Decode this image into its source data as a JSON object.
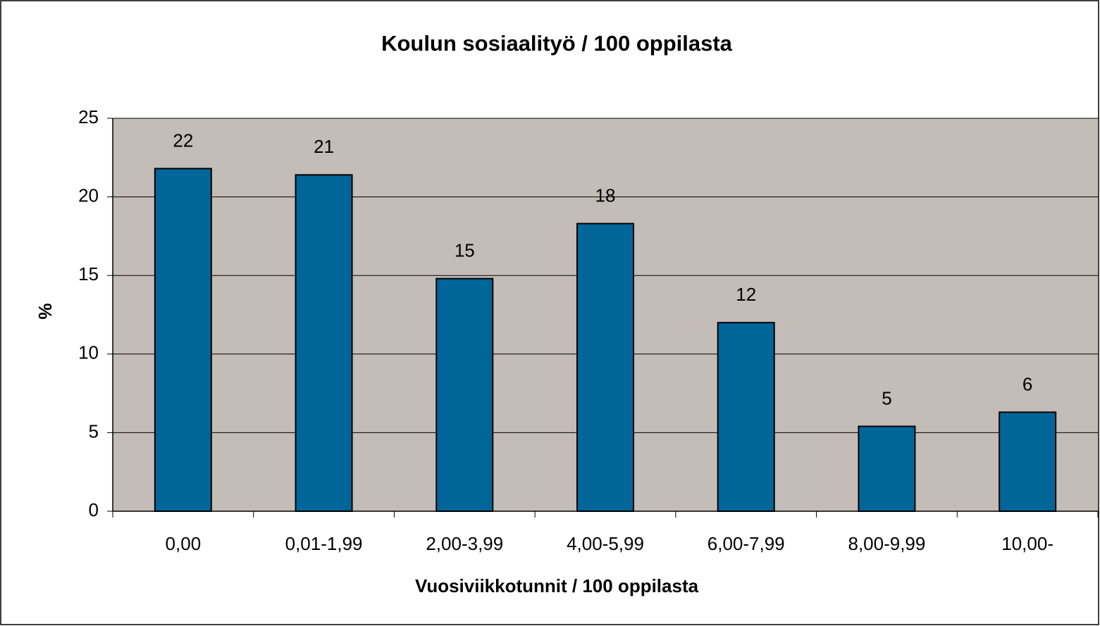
{
  "chart_data": {
    "type": "bar",
    "title": "Koulun sosiaalityö / 100 oppilasta",
    "x_label": "Vuosiviikkotunnit / 100 oppilasta",
    "y_label": "%",
    "categories": [
      "0,00",
      "0,01-1,99",
      "2,00-3,99",
      "4,00-5,99",
      "6,00-7,99",
      "8,00-9,99",
      "10,00-"
    ],
    "values": [
      21.8,
      21.4,
      14.8,
      18.3,
      12.0,
      5.4,
      6.3
    ],
    "value_labels": [
      "22",
      "21",
      "15",
      "18",
      "12",
      "5",
      "6"
    ],
    "color": "#006699",
    "ylim": [
      0,
      25
    ],
    "yticks": [
      0,
      5,
      10,
      15,
      20,
      25
    ],
    "grid": true
  }
}
